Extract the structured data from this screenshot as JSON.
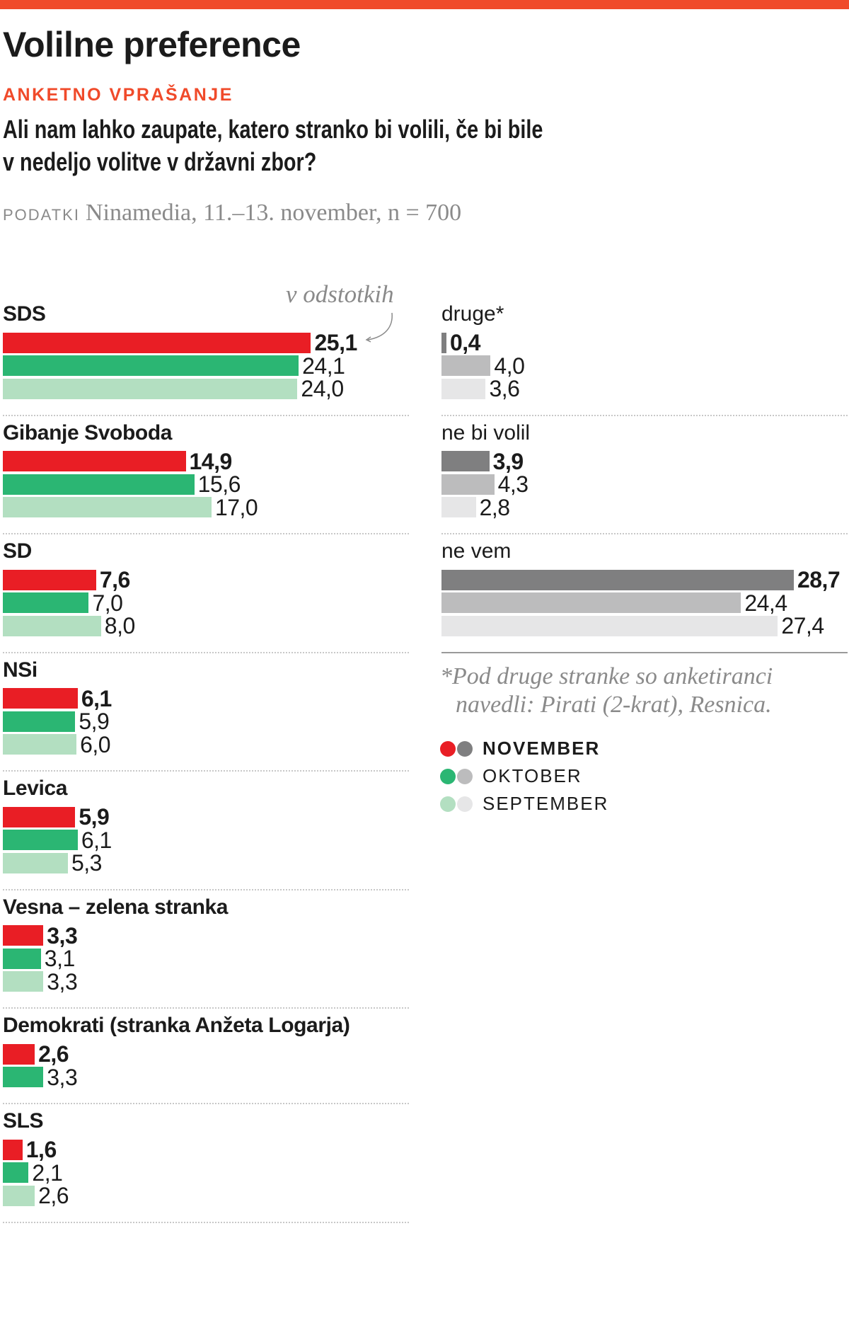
{
  "header": {
    "title": "Volilne preference",
    "kicker": "ANKETNO VPRAŠANJE",
    "question_line1": "Ali nam lahko zaupate, katero stranko bi volili, če bi bile",
    "question_line2": "v nedeljo volitve v državni zbor?",
    "source_label": "PODATKI",
    "source_text": "Ninamedia, 11.–13. november, n = 700"
  },
  "chart_data": {
    "type": "bar",
    "orientation": "horizontal",
    "unit_label": "v odstotkih",
    "series": [
      {
        "name": "NOVEMBER",
        "colors": [
          "#e91e25",
          "#7f7f80"
        ]
      },
      {
        "name": "OKTOBER",
        "colors": [
          "#2bb673",
          "#bcbcbd"
        ]
      },
      {
        "name": "SEPTEMBER",
        "colors": [
          "#b3dfc1",
          "#e6e6e7"
        ]
      }
    ],
    "parties": [
      {
        "name": "SDS",
        "values": [
          25.1,
          24.1,
          24.0
        ],
        "labels": [
          "25,1",
          "24,1",
          "24,0"
        ]
      },
      {
        "name": "Gibanje Svoboda",
        "values": [
          14.9,
          15.6,
          17.0
        ],
        "labels": [
          "14,9",
          "15,6",
          "17,0"
        ]
      },
      {
        "name": "SD",
        "values": [
          7.6,
          7.0,
          8.0
        ],
        "labels": [
          "7,6",
          "7,0",
          "8,0"
        ]
      },
      {
        "name": "NSi",
        "values": [
          6.1,
          5.9,
          6.0
        ],
        "labels": [
          "6,1",
          "5,9",
          "6,0"
        ]
      },
      {
        "name": "Levica",
        "values": [
          5.9,
          6.1,
          5.3
        ],
        "labels": [
          "5,9",
          "6,1",
          "5,3"
        ]
      },
      {
        "name": "Vesna – zelena stranka",
        "values": [
          3.3,
          3.1,
          3.3
        ],
        "labels": [
          "3,3",
          "3,1",
          "3,3"
        ]
      },
      {
        "name": "Demokrati (stranka Anžeta Logarja)",
        "values": [
          2.6,
          3.3
        ],
        "labels": [
          "2,6",
          "3,3"
        ]
      },
      {
        "name": "SLS",
        "values": [
          1.6,
          2.1,
          2.6
        ],
        "labels": [
          "1,6",
          "2,1",
          "2,6"
        ]
      }
    ],
    "other": [
      {
        "name": "druge*",
        "values": [
          0.4,
          4.0,
          3.6
        ],
        "labels": [
          "0,4",
          "4,0",
          "3,6"
        ]
      },
      {
        "name": "ne bi volil",
        "values": [
          3.9,
          4.3,
          2.8
        ],
        "labels": [
          "3,9",
          "4,3",
          "2,8"
        ]
      },
      {
        "name": "ne vem",
        "values": [
          28.7,
          24.4,
          27.4
        ],
        "labels": [
          "28,7",
          "24,4",
          "27,4"
        ]
      }
    ]
  },
  "footnote": {
    "star": "*",
    "line1": "Pod druge stranke so anketiranci",
    "line2": "navedli: Pirati (2-krat), Resnica."
  }
}
